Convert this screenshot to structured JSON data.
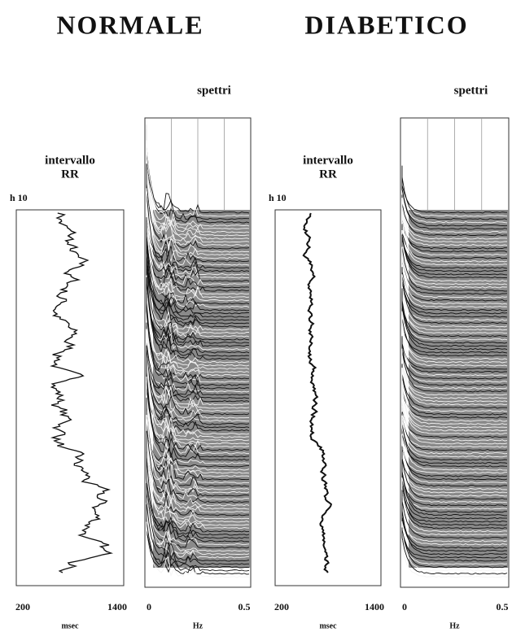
{
  "groups": [
    {
      "heading": "NORMALE",
      "rr": {
        "title": [
          "intervallo",
          "RR"
        ],
        "time_label": "h 10",
        "x_min": "200",
        "x_max": "1400",
        "x_unit": "msec"
      },
      "spectra": {
        "title": "spettri",
        "x_min": "0",
        "x_max": "0.5",
        "x_unit": "Hz"
      }
    },
    {
      "heading": "DIABETICO",
      "rr": {
        "title": [
          "intervallo",
          "RR"
        ],
        "time_label": "h 10",
        "x_min": "200",
        "x_max": "1400",
        "x_unit": "msec"
      },
      "spectra": {
        "title": "spettri",
        "x_min": "0",
        "x_max": "0.5",
        "x_unit": "Hz"
      }
    }
  ]
}
